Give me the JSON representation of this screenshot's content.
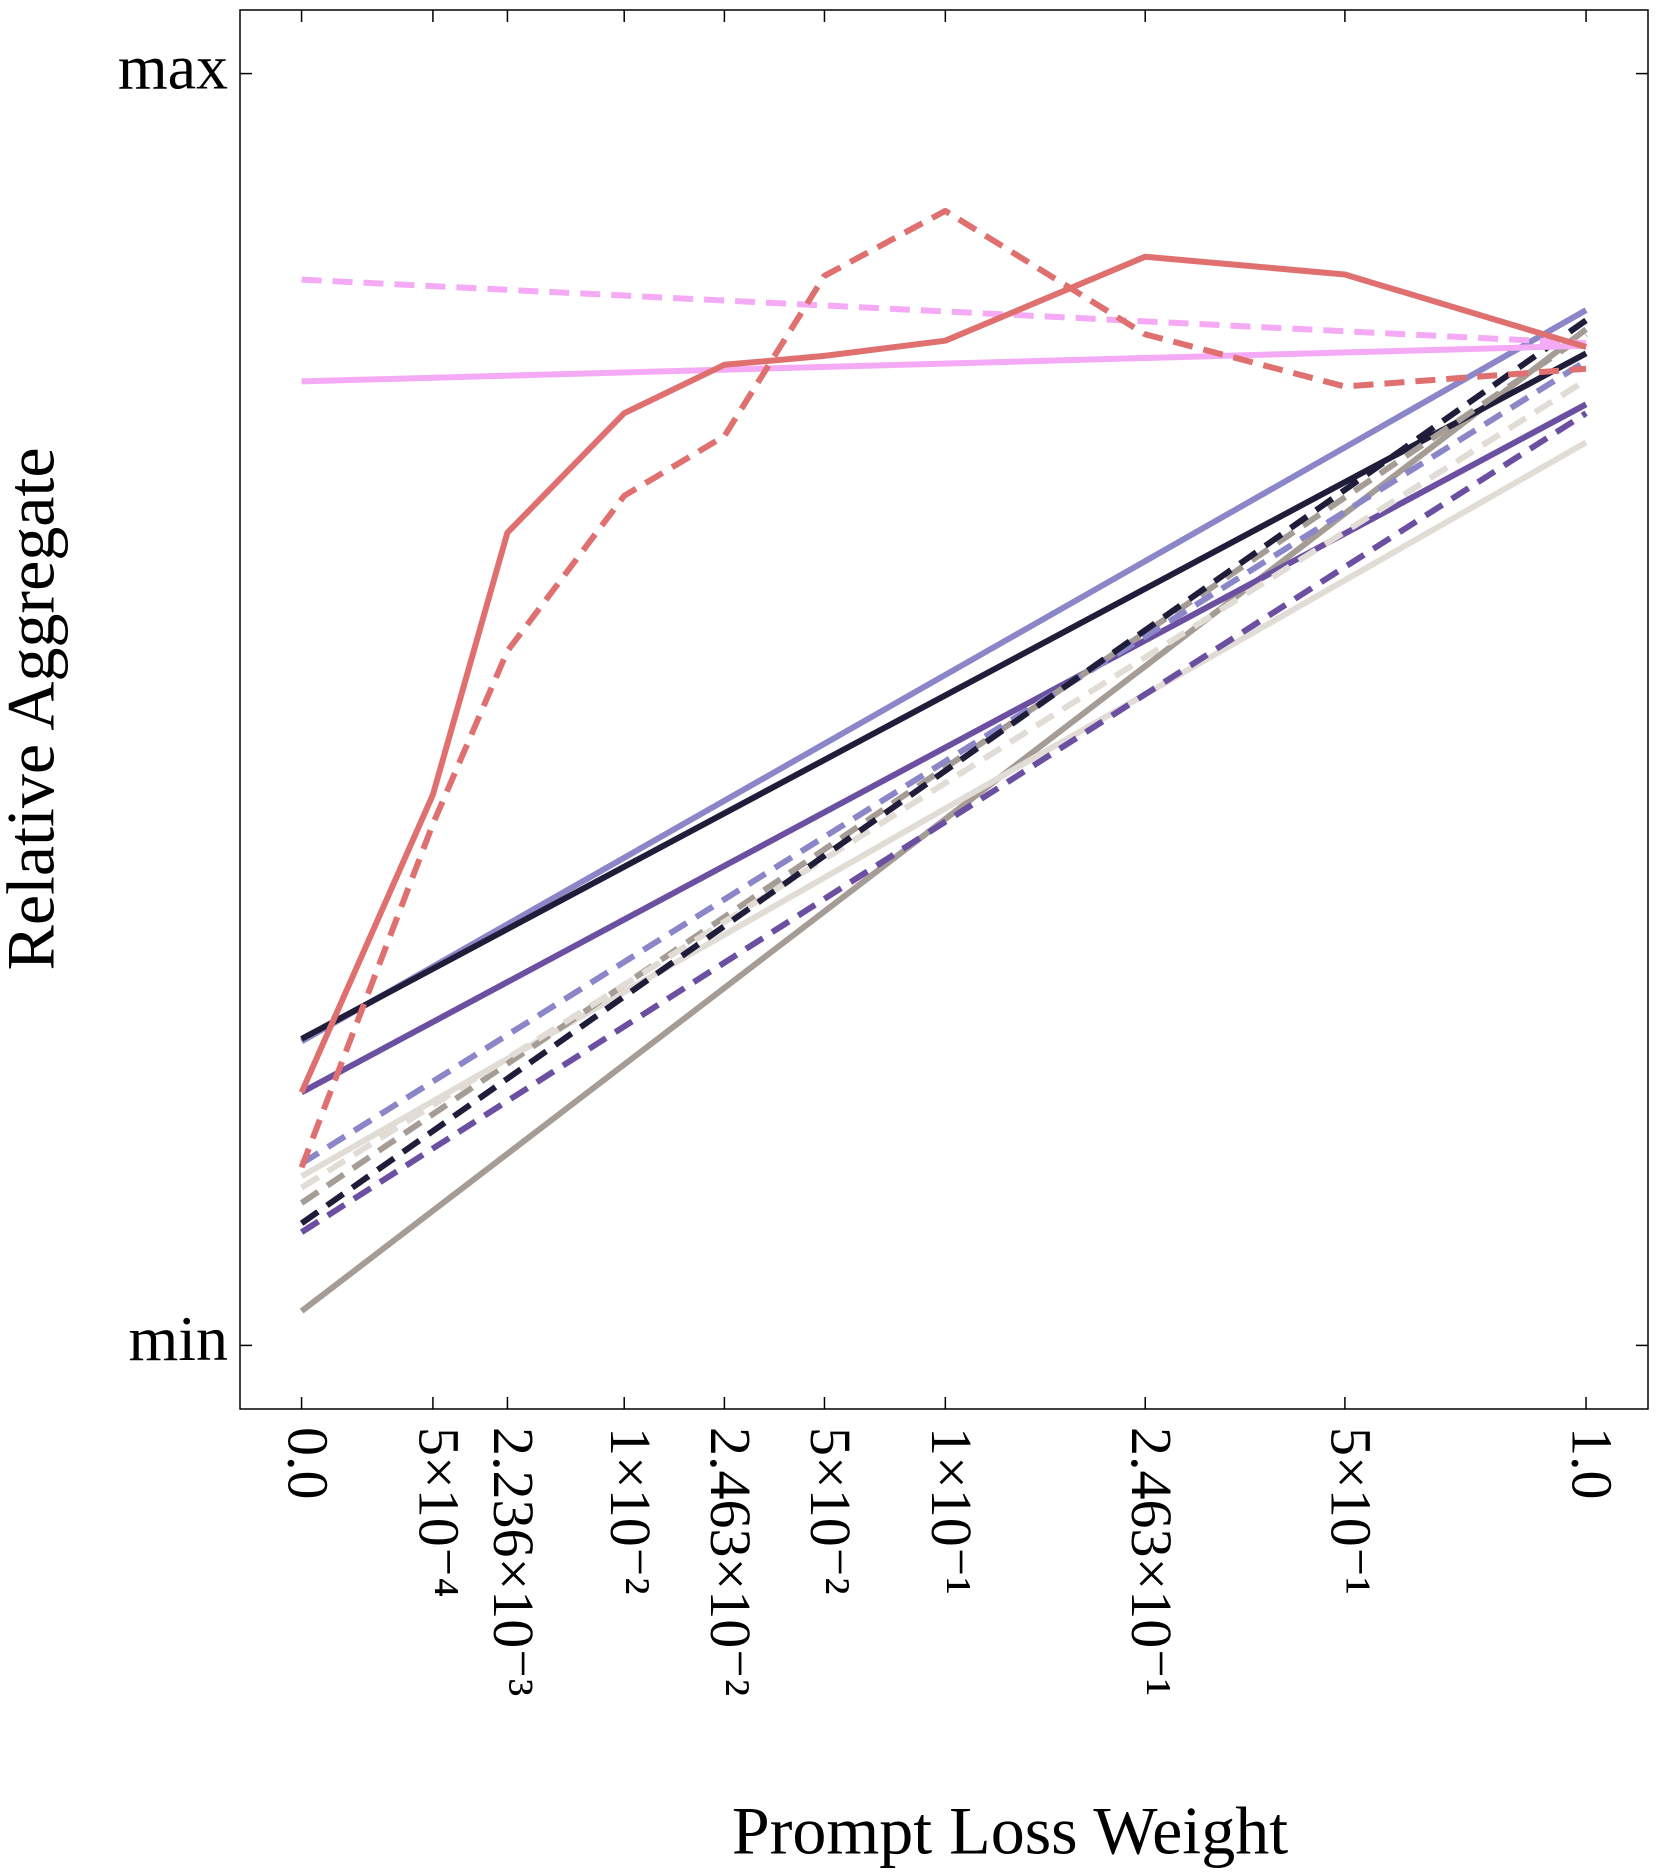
{
  "chart_data": {
    "type": "line",
    "x_label": "Prompt Loss Weight",
    "y_label": "Relative Aggregate",
    "xscale": {
      "type": "power",
      "exponent": 0.3
    },
    "xlim": [
      -4e-05,
      1.17
    ],
    "xticks": [
      {
        "value": 0.0,
        "label": "0.0"
      },
      {
        "value": 0.0005,
        "label": "5×10⁻⁴"
      },
      {
        "value": 0.002236,
        "label": "2.236×10⁻³"
      },
      {
        "value": 0.01,
        "label": "1×10⁻²"
      },
      {
        "value": 0.02463,
        "label": "2.463×10⁻²"
      },
      {
        "value": 0.05,
        "label": "5×10⁻²"
      },
      {
        "value": 0.1,
        "label": "1×10⁻¹"
      },
      {
        "value": 0.2463,
        "label": "2.463×10⁻¹"
      },
      {
        "value": 0.5,
        "label": "5×10⁻¹"
      },
      {
        "value": 1.0,
        "label": "1.0"
      }
    ],
    "ylim": [
      -0.05,
      1.05
    ],
    "yticks": [
      {
        "value": 0,
        "label": "min"
      },
      {
        "value": 1,
        "label": "max"
      }
    ],
    "series": [
      {
        "color": "#a59c96",
        "linestyle": "solid",
        "x": [
          0,
          1
        ],
        "values": [
          0.027,
          0.799
        ]
      },
      {
        "color": "#e2dcd6",
        "linestyle": "solid",
        "x": [
          0,
          1
        ],
        "values": [
          0.133,
          0.71
        ]
      },
      {
        "color": "#6b4fa0",
        "linestyle": "solid",
        "x": [
          0,
          1
        ],
        "values": [
          0.199,
          0.74
        ]
      },
      {
        "color": "#8b86c8",
        "linestyle": "solid",
        "x": [
          0,
          1
        ],
        "values": [
          0.239,
          0.814
        ]
      },
      {
        "color": "#1f1d3a",
        "linestyle": "solid",
        "x": [
          0,
          1
        ],
        "values": [
          0.241,
          0.78
        ]
      },
      {
        "color": "#a59c96",
        "linestyle": "dashed",
        "x": [
          0,
          1
        ],
        "values": [
          0.112,
          0.795
        ]
      },
      {
        "color": "#e2dcd6",
        "linestyle": "dashed",
        "x": [
          0,
          1
        ],
        "values": [
          0.124,
          0.759
        ]
      },
      {
        "color": "#8b86c8",
        "linestyle": "dashed",
        "x": [
          0,
          1
        ],
        "values": [
          0.143,
          0.774
        ]
      },
      {
        "color": "#6b4fa0",
        "linestyle": "dashed",
        "x": [
          0,
          1
        ],
        "values": [
          0.089,
          0.733
        ]
      },
      {
        "color": "#1f1d3a",
        "linestyle": "dashed",
        "x": [
          0,
          1
        ],
        "values": [
          0.096,
          0.806
        ]
      },
      {
        "color": "#f5aaf5",
        "linestyle": "solid",
        "x": [
          0,
          1
        ],
        "values": [
          0.758,
          0.786
        ]
      },
      {
        "color": "#f5aaf5",
        "linestyle": "dashed",
        "x": [
          0,
          1
        ],
        "values": [
          0.838,
          0.788
        ]
      },
      {
        "color": "#e07070",
        "linestyle": "solid",
        "x": [
          0.0,
          0.0005,
          0.002236,
          0.01,
          0.02463,
          0.05,
          0.1,
          0.2463,
          0.5,
          1.0
        ],
        "values": [
          0.199,
          0.433,
          0.639,
          0.733,
          0.771,
          0.778,
          0.79,
          0.856,
          0.842,
          0.785
        ]
      },
      {
        "color": "#e07070",
        "linestyle": "dashed",
        "x": [
          0.0,
          0.0005,
          0.002236,
          0.01,
          0.02463,
          0.05,
          0.1,
          0.2463,
          0.5,
          1.0
        ],
        "values": [
          0.14,
          0.41,
          0.546,
          0.668,
          0.715,
          0.841,
          0.892,
          0.795,
          0.754,
          0.768
        ]
      }
    ]
  }
}
